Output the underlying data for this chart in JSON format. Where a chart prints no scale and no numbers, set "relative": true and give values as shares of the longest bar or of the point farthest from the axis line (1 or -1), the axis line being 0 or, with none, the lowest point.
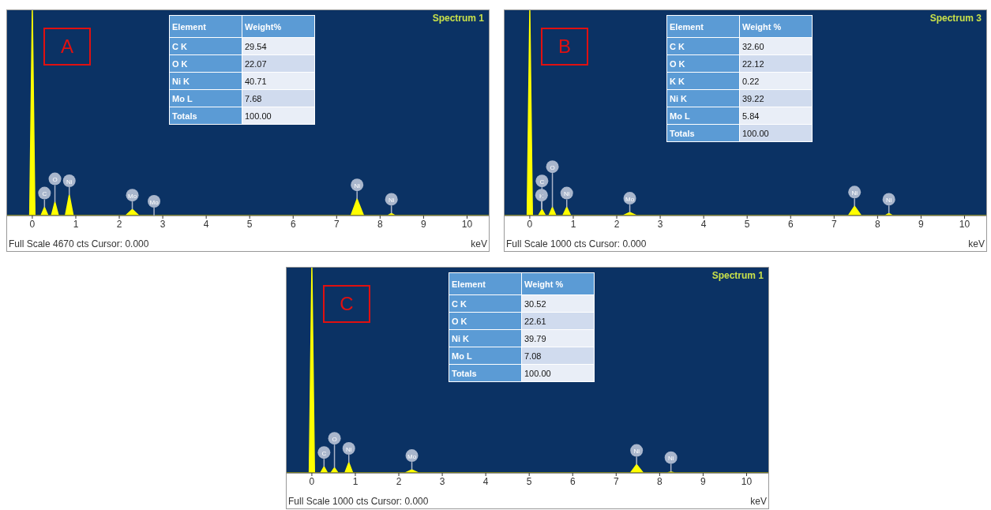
{
  "chart_data": [
    {
      "type": "area",
      "title": "Spectrum 1",
      "xlabel": "keV",
      "relative": true,
      "color": "#ffff00",
      "xlim": [
        -0.58,
        10.5
      ],
      "xticks": [
        0,
        1,
        2,
        3,
        4,
        5,
        6,
        7,
        8,
        9,
        10
      ],
      "x": [
        -0.58,
        -0.06,
        0,
        0.06,
        0.2,
        0.28,
        0.36,
        0.44,
        0.52,
        0.6,
        0.76,
        0.85,
        0.94,
        2.15,
        2.3,
        2.45,
        7.33,
        7.47,
        7.62,
        8.18,
        8.26,
        8.34,
        10.5
      ],
      "values": [
        0,
        0,
        1,
        0,
        0,
        0.04,
        0,
        0,
        0.065,
        0,
        0,
        0.1,
        0,
        0,
        0.03,
        0,
        0,
        0.08,
        0,
        0,
        0.01,
        0,
        0
      ],
      "annotations": [
        "A",
        "Full Scale 4670 cts Cursor: 0.000",
        "Element",
        "Weight%",
        "C K",
        "29.54",
        "O K",
        "22.07",
        "Ni K",
        "40.71",
        "Mo L",
        "7.68",
        "Totals",
        "100.00",
        {
          "text": "C",
          "x": 0.28,
          "y": 0.04
        },
        {
          "text": "O",
          "x": 0.52,
          "y": 0.065
        },
        {
          "text": "Ni",
          "x": 0.85,
          "y": 0.1
        },
        {
          "text": "Mo",
          "x": 2.3,
          "y": 0.03
        },
        {
          "text": "Mo",
          "x": 2.8,
          "y": 0
        },
        {
          "text": "Ni",
          "x": 7.47,
          "y": 0.08
        },
        {
          "text": "Ni",
          "x": 8.26,
          "y": 0.01
        }
      ]
    },
    {
      "type": "area",
      "title": "Spectrum 3",
      "xlabel": "keV",
      "relative": true,
      "color": "#ffff00",
      "xlim": [
        -0.58,
        10.5
      ],
      "xticks": [
        0,
        1,
        2,
        3,
        4,
        5,
        6,
        7,
        8,
        9,
        10
      ],
      "x": [
        -0.58,
        -0.06,
        0,
        0.06,
        0.2,
        0.28,
        0.36,
        0.44,
        0.52,
        0.6,
        0.76,
        0.85,
        0.94,
        2.15,
        2.3,
        2.45,
        7.33,
        7.47,
        7.62,
        8.18,
        8.26,
        8.34,
        10.5
      ],
      "values": [
        0,
        0,
        1,
        0,
        0,
        0.03,
        0,
        0,
        0.04,
        0,
        0,
        0.04,
        0,
        0,
        0.015,
        0,
        0,
        0.045,
        0,
        0,
        0.01,
        0,
        0
      ],
      "annotations": [
        "B",
        "Full Scale 1000 cts Cursor: 0.000",
        "Element",
        "Weight %",
        "C K",
        "32.60",
        "O K",
        "22.12",
        "K K",
        "0.22",
        "Ni K",
        "39.22",
        "Mo L",
        "5.84",
        "Totals",
        "100.00",
        {
          "text": "K",
          "x": 0.27,
          "y": 0.03
        },
        {
          "text": "C",
          "x": 0.28,
          "y": 0.03
        },
        {
          "text": "O",
          "x": 0.52,
          "y": 0.04
        },
        {
          "text": "Ni",
          "x": 0.85,
          "y": 0.04
        },
        {
          "text": "Mo",
          "x": 2.3,
          "y": 0.015
        },
        {
          "text": "Ni",
          "x": 7.47,
          "y": 0.045
        },
        {
          "text": "Ni",
          "x": 8.26,
          "y": 0.01
        }
      ]
    },
    {
      "type": "area",
      "title": "Spectrum 1",
      "xlabel": "keV",
      "relative": true,
      "color": "#ffff00",
      "xlim": [
        -0.58,
        10.5
      ],
      "xticks": [
        0,
        1,
        2,
        3,
        4,
        5,
        6,
        7,
        8,
        9,
        10
      ],
      "x": [
        -0.58,
        -0.06,
        0,
        0.06,
        0.2,
        0.28,
        0.36,
        0.44,
        0.52,
        0.6,
        0.76,
        0.85,
        0.94,
        2.15,
        2.3,
        2.45,
        7.33,
        7.47,
        7.62,
        8.18,
        8.26,
        8.34,
        10.5
      ],
      "values": [
        0,
        0,
        1,
        0,
        0,
        0.03,
        0,
        0,
        0.025,
        0,
        0,
        0.05,
        0,
        0,
        0.015,
        0,
        0,
        0.04,
        0,
        0,
        0.005,
        0,
        0
      ],
      "annotations": [
        "C",
        "Full Scale 1000 cts Cursor: 0.000",
        "Element",
        "Weight %",
        "C K",
        "30.52",
        "O K",
        "22.61",
        "Ni K",
        "39.79",
        "Mo L",
        "7.08",
        "Totals",
        "100.00",
        {
          "text": "C",
          "x": 0.28,
          "y": 0.03
        },
        {
          "text": "O",
          "x": 0.52,
          "y": 0.025
        },
        {
          "text": "Ni",
          "x": 0.85,
          "y": 0.05
        },
        {
          "text": "Mo",
          "x": 2.3,
          "y": 0.015
        },
        {
          "text": "Ni",
          "x": 7.47,
          "y": 0.04
        },
        {
          "text": "Ni",
          "x": 8.26,
          "y": 0.005
        }
      ]
    }
  ]
}
